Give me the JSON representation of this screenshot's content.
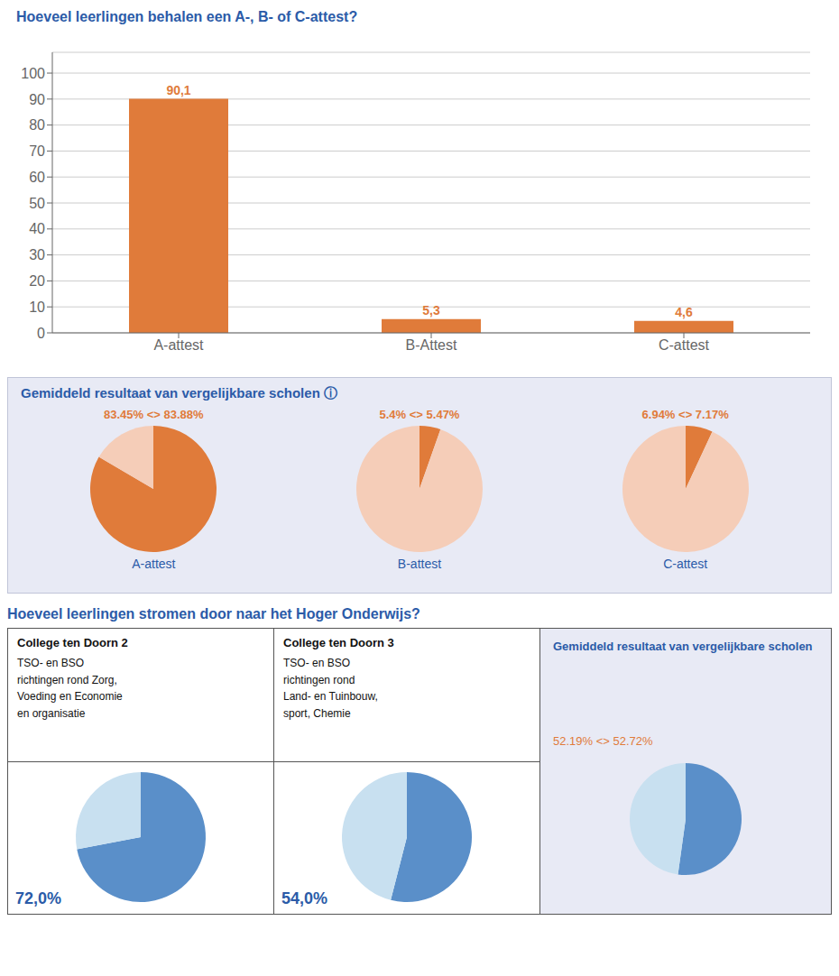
{
  "chart_data": [
    {
      "type": "bar",
      "title": "Hoeveel leerlingen behalen een A-, B- of C-attest?",
      "categories": [
        "A-attest",
        "B-Attest",
        "C-attest"
      ],
      "values": [
        90.1,
        5.3,
        4.6
      ],
      "value_labels": [
        "90,1",
        "5,3",
        "4,6"
      ],
      "data_labels": true,
      "color": "#E07B3A",
      "ylim": [
        0,
        108
      ],
      "yticks": [
        0,
        10,
        20,
        30,
        40,
        50,
        60,
        70,
        80,
        90,
        100
      ],
      "grid": true
    },
    {
      "type": "pie",
      "title": "Gemiddeld resultaat van vergelijkbare scholen  ⓘ",
      "series": [
        {
          "name": "A-attest",
          "values": [
            83.45,
            16.55
          ]
        },
        {
          "name": "B-attest",
          "values": [
            5.4,
            94.6
          ]
        },
        {
          "name": "C-attest",
          "values": [
            6.94,
            93.06
          ]
        }
      ],
      "annotations": [
        "83.45% <> 83.88%",
        "5.4% <> 5.47%",
        "6.94% <> 7.17%"
      ],
      "colors": [
        "#E07B3A",
        "#F5CDB8"
      ]
    },
    {
      "type": "pie",
      "title": "Hoeveel leerlingen stromen door naar het Hoger Onderwijs?",
      "series": [
        {
          "name": "College ten Doorn 2",
          "values": [
            72.0,
            28.0
          ],
          "value_labels": [
            "72,0%",
            null
          ]
        },
        {
          "name": "College ten Doorn 3",
          "values": [
            54.0,
            46.0
          ],
          "value_labels": [
            "54,0%",
            null
          ]
        },
        {
          "name": "Gemiddeld resultaat van vergelijkbare scholen",
          "values": [
            52.19,
            47.81
          ]
        }
      ],
      "annotations": [
        "TSO- en BSO\nrichtingen rond Zorg,\nVoeding en Economie\nen organisatie",
        "TSO- en BSO\nrichtingen rond\nLand- en Tuinbouw,\nsport, Chemie",
        "52.19% <> 52.72%"
      ],
      "colors": [
        "#5A8FC9",
        "#C8E0F0"
      ]
    }
  ]
}
